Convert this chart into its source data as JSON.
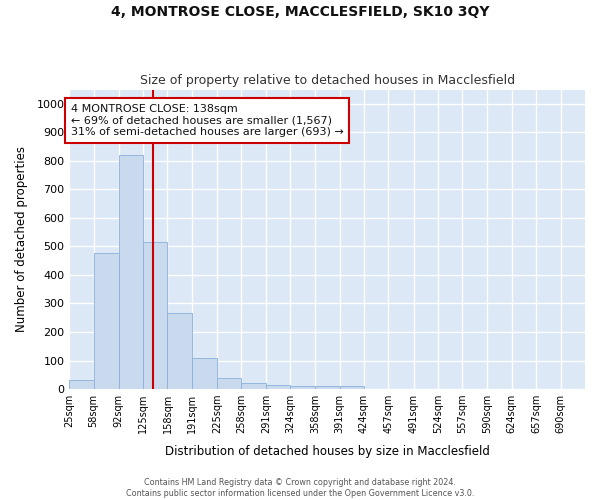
{
  "title": "4, MONTROSE CLOSE, MACCLESFIELD, SK10 3QY",
  "subtitle": "Size of property relative to detached houses in Macclesfield",
  "xlabel": "Distribution of detached houses by size in Macclesfield",
  "ylabel": "Number of detached properties",
  "bar_color": "#c9d9ee",
  "bar_edge_color": "#8ab0d8",
  "background_color": "#dce8f5",
  "fig_background_color": "#ffffff",
  "grid_color": "#ffffff",
  "annotation_text": "4 MONTROSE CLOSE: 138sqm\n← 69% of detached houses are smaller (1,567)\n31% of semi-detached houses are larger (693) →",
  "annotation_box_color": "#ffffff",
  "annotation_box_edge": "#cc0000",
  "vline_x": 138,
  "vline_color": "#cc0000",
  "ylim": [
    0,
    1050
  ],
  "yticks": [
    0,
    100,
    200,
    300,
    400,
    500,
    600,
    700,
    800,
    900,
    1000
  ],
  "categories": [
    "25sqm",
    "58sqm",
    "92sqm",
    "125sqm",
    "158sqm",
    "191sqm",
    "225sqm",
    "258sqm",
    "291sqm",
    "324sqm",
    "358sqm",
    "391sqm",
    "424sqm",
    "457sqm",
    "491sqm",
    "524sqm",
    "557sqm",
    "590sqm",
    "624sqm",
    "657sqm",
    "690sqm"
  ],
  "bin_edges": [
    25,
    58,
    92,
    125,
    158,
    191,
    225,
    258,
    291,
    324,
    358,
    391,
    424,
    457,
    491,
    524,
    557,
    590,
    624,
    657,
    690,
    723
  ],
  "values": [
    33,
    477,
    820,
    517,
    265,
    110,
    40,
    22,
    13,
    10,
    10,
    10,
    0,
    0,
    0,
    0,
    0,
    0,
    0,
    0,
    0
  ],
  "footer_line1": "Contains HM Land Registry data © Crown copyright and database right 2024.",
  "footer_line2": "Contains public sector information licensed under the Open Government Licence v3.0."
}
